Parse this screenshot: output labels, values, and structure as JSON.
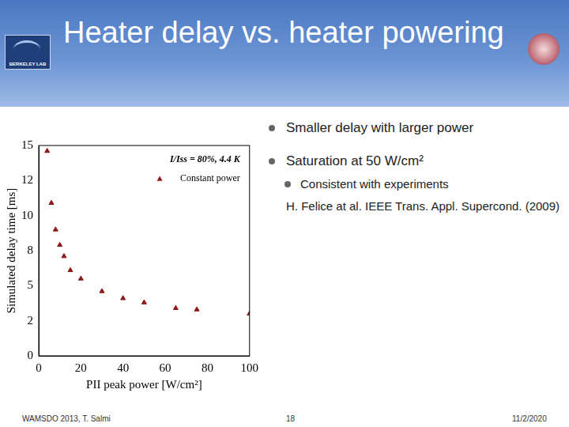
{
  "header": {
    "title": "Heater delay vs. heater powering",
    "logo_text": "BERKELEY LAB"
  },
  "bullets": [
    {
      "text": "Smaller delay with larger power"
    },
    {
      "text": "Saturation at 50 W/cm²",
      "sub": [
        "Consistent with experiments"
      ]
    }
  ],
  "reference": "H. Felice at al. IEEE Trans. Appl. Supercond. (2009)",
  "footer": {
    "left": "WAMSDO 2013, T. Salmi",
    "center": "18",
    "right": "11/2/2020"
  },
  "chart_data": {
    "type": "scatter",
    "annotation": "I/Iss = 80%, 4.4 K",
    "x_label": "PII peak power [W/cm²]",
    "y_label": "Simulated delay time [ms]",
    "series": [
      {
        "name": "Constant power",
        "color": "#8b1a1a",
        "marker": "triangle",
        "x": [
          4,
          6,
          8,
          10,
          12,
          15,
          20,
          30,
          40,
          50,
          65,
          75,
          100
        ],
        "values": [
          14.6,
          10.9,
          9.0,
          7.9,
          7.1,
          6.1,
          5.5,
          4.6,
          4.1,
          3.8,
          3.4,
          3.3,
          3.0
        ]
      }
    ],
    "xlim": [
      0,
      100
    ],
    "xticks": [
      0,
      20,
      40,
      60,
      80,
      100
    ],
    "ylim": [
      0,
      15
    ],
    "yticks": [
      0,
      {
        "value": 2.5,
        "label": "2"
      },
      5,
      {
        "value": 7.5,
        "label": "8"
      },
      10,
      {
        "value": 12.5,
        "label": "12"
      },
      15
    ],
    "grid": false,
    "legend": "upper right"
  }
}
